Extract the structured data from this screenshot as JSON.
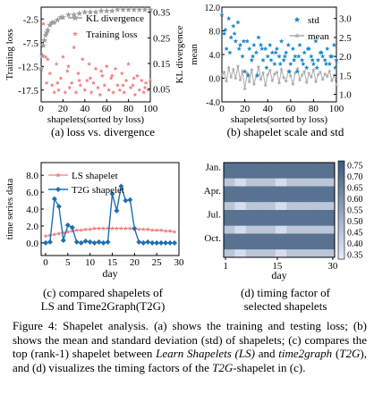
{
  "figure": {
    "label": "Figure 4:",
    "title": "Shapelet analysis.",
    "caption_parts": [
      {
        "t": "(a) shows the training and testing loss; (b) shows the mean and standard deviation (std) of shapelets; (c) compares the top (rank-1) shapelet between ",
        "i": false
      },
      {
        "t": "Learn Shapelets (LS)",
        "i": true
      },
      {
        "t": " and ",
        "i": false
      },
      {
        "t": "time2graph",
        "i": true
      },
      {
        "t": " (",
        "i": false
      },
      {
        "t": "T2G",
        "i": true
      },
      {
        "t": "), and (d) visualizes the timing factors of the ",
        "i": false
      },
      {
        "t": "T2G",
        "i": true
      },
      {
        "t": "-shapelet in (c).",
        "i": false
      }
    ]
  },
  "subcaptions": {
    "a": "(a) loss vs. divergence",
    "b": "(b) shapelet scale and std",
    "c1": "(c) compared shapelets of",
    "c2": "LS and Time2Graph(T2G)",
    "d1": "(d) timing factor of",
    "d2": "selected shapelets"
  },
  "chart_data": [
    {
      "id": "a",
      "type": "scatter",
      "xlabel": "shapelets(sorted by loss)",
      "ylabel": "Training loss",
      "y2label": "KL divergence",
      "xlim": [
        0,
        100
      ],
      "ylim": [
        -20,
        0
      ],
      "y2lim": [
        0,
        0.37
      ],
      "xticks": [
        "0",
        "20",
        "40",
        "60",
        "80",
        "100"
      ],
      "yticks": [
        "-2.5",
        "-7.5",
        "-12.5",
        "-17.5"
      ],
      "y2ticks": [
        "0.05",
        "0.15",
        "0.25",
        "0.35"
      ],
      "legend": [
        "KL divergence",
        "Training loss"
      ],
      "legend_position": "top",
      "series": [
        {
          "name": "KL divergence",
          "axis": "right",
          "color": "#9e9e9e",
          "x": [
            0,
            1,
            2,
            3,
            4,
            5,
            6,
            8,
            10,
            12,
            15,
            18,
            20,
            25,
            30,
            35,
            40,
            45,
            50,
            55,
            60,
            65,
            70,
            75,
            80,
            85,
            90,
            95,
            100
          ],
          "y": [
            0.13,
            0.18,
            0.22,
            0.24,
            0.26,
            0.27,
            0.28,
            0.3,
            0.31,
            0.31,
            0.32,
            0.33,
            0.33,
            0.34,
            0.34,
            0.345,
            0.35,
            0.35,
            0.35,
            0.355,
            0.355,
            0.355,
            0.36,
            0.36,
            0.36,
            0.36,
            0.36,
            0.36,
            0.36
          ]
        },
        {
          "name": "Training loss",
          "axis": "left",
          "color": "#f08080",
          "x": [
            2,
            4,
            6,
            8,
            10,
            12,
            14,
            16,
            18,
            20,
            22,
            24,
            26,
            28,
            30,
            32,
            34,
            36,
            38,
            40,
            42,
            44,
            46,
            48,
            50,
            52,
            54,
            56,
            58,
            60,
            62,
            64,
            66,
            68,
            70,
            72,
            74,
            76,
            78,
            80,
            82,
            84,
            86,
            88,
            90,
            92,
            94,
            96,
            98,
            100,
            5,
            15,
            25,
            35,
            45,
            55,
            65,
            75,
            85,
            95
          ],
          "y": [
            -3.5,
            -10.5,
            -11.0,
            -14.0,
            -16.5,
            -18.0,
            -12.0,
            -17.5,
            -15.0,
            -10.5,
            -18.0,
            -13.5,
            -17.0,
            -16.0,
            -8.5,
            -18.0,
            -14.0,
            -16.5,
            -11.0,
            -17.5,
            -15.5,
            -12.0,
            -18.0,
            -16.0,
            -13.0,
            -17.0,
            -18.5,
            -14.5,
            -16.5,
            -12.5,
            -17.5,
            -15.0,
            -18.0,
            -13.0,
            -16.5,
            -17.5,
            -14.0,
            -18.0,
            -15.5,
            -12.0,
            -17.0,
            -16.5,
            -18.5,
            -14.5,
            -17.5,
            -15.5,
            -18.0,
            -16.0,
            -17.5,
            -15.5,
            -16.0,
            -16.0,
            -12.5,
            -15.5,
            -15.0,
            -13.5,
            -14.5,
            -16.5,
            -15.0,
            -17.0
          ]
        }
      ]
    },
    {
      "id": "b",
      "type": "scatter",
      "xlabel": "shapelets(sorted by loss)",
      "ylabel": "mean",
      "y2label": "",
      "xlim": [
        0,
        100
      ],
      "ylim": [
        -4,
        12
      ],
      "y2lim": [
        0.8,
        3.3
      ],
      "xticks": [
        "0",
        "20",
        "40",
        "60",
        "80",
        "100"
      ],
      "yticks": [
        "-4.0",
        "0.0",
        "4.0",
        "8.0",
        "12.0"
      ],
      "y2ticks": [
        "1.0",
        "1.5",
        "2.0",
        "2.5",
        "3.0"
      ],
      "legend": [
        "std",
        "mean"
      ],
      "legend_position": "top-right",
      "series": [
        {
          "name": "std",
          "axis": "right",
          "color": "#1e88c8",
          "x": [
            0,
            2,
            4,
            6,
            8,
            10,
            12,
            14,
            16,
            18,
            20,
            22,
            24,
            26,
            28,
            30,
            32,
            34,
            36,
            38,
            40,
            42,
            44,
            46,
            48,
            50,
            52,
            54,
            56,
            58,
            60,
            62,
            64,
            66,
            68,
            70,
            72,
            74,
            76,
            78,
            80,
            82,
            84,
            86,
            88,
            90,
            92,
            94,
            96,
            98,
            100,
            3,
            7,
            11,
            15,
            19,
            23,
            27,
            31,
            35,
            39,
            43,
            47,
            51,
            55,
            59,
            63,
            67,
            71,
            75,
            79,
            83,
            87,
            91,
            95,
            99
          ],
          "y": [
            3.1,
            2.6,
            2.2,
            3.0,
            2.5,
            2.8,
            2.4,
            2.9,
            2.3,
            2.0,
            1.6,
            2.4,
            2.2,
            1.9,
            2.3,
            2.1,
            2.5,
            2.3,
            1.9,
            2.2,
            2.0,
            2.3,
            2.1,
            1.8,
            2.2,
            2.0,
            2.4,
            1.9,
            2.1,
            2.3,
            1.8,
            2.2,
            2.0,
            1.6,
            2.3,
            1.9,
            2.1,
            1.7,
            2.2,
            2.0,
            1.8,
            2.4,
            1.9,
            2.1,
            2.0,
            1.9,
            2.2,
            1.8,
            2.0,
            2.3,
            1.9,
            2.7,
            2.1,
            2.6,
            2.2,
            2.4,
            1.5,
            2.0,
            1.5,
            2.2,
            1.7,
            1.9,
            2.1,
            1.8,
            2.0,
            1.6,
            1.9,
            2.0,
            1.8,
            2.2,
            1.9,
            1.7,
            2.1,
            1.8,
            2.0,
            1.7
          ]
        },
        {
          "name": "mean",
          "axis": "left",
          "color": "#aaaaaa",
          "x": [
            0,
            2,
            4,
            6,
            8,
            10,
            12,
            14,
            16,
            18,
            20,
            22,
            24,
            26,
            28,
            30,
            32,
            34,
            36,
            38,
            40,
            42,
            44,
            46,
            48,
            50,
            52,
            54,
            56,
            58,
            60,
            62,
            64,
            66,
            68,
            70,
            72,
            74,
            76,
            78,
            80,
            82,
            84,
            86,
            88,
            90,
            92,
            94,
            96,
            98,
            100
          ],
          "y": [
            0.5,
            1.0,
            -0.5,
            1.8,
            0.2,
            1.5,
            0.0,
            2.0,
            -0.3,
            1.2,
            -1.8,
            0.8,
            -0.6,
            1.4,
            -1.0,
            0.3,
            1.9,
            -0.2,
            0.9,
            -1.2,
            0.6,
            1.3,
            -0.4,
            0.7,
            1.0,
            -0.8,
            1.5,
            0.1,
            -0.5,
            1.2,
            0.4,
            -1.0,
            0.9,
            1.6,
            -0.3,
            0.5,
            1.1,
            -0.7,
            0.8,
            0.2,
            1.4,
            -0.6,
            0.6,
            1.0,
            -0.2,
            0.7,
            0.3,
            1.2,
            -0.4,
            0.5,
            -1.2
          ]
        }
      ]
    },
    {
      "id": "c",
      "type": "line",
      "xlabel": "day",
      "ylabel": "time series data",
      "xlim": [
        -1,
        30
      ],
      "ylim": [
        -1.5,
        9.5
      ],
      "xticks": [
        "0",
        "5",
        "10",
        "15",
        "20",
        "25",
        "30"
      ],
      "yticks": [
        "0.0",
        "2.0",
        "4.0",
        "6.0",
        "8.0"
      ],
      "legend": [
        "LS shapelet",
        "T2G shapelet"
      ],
      "legend_position": "top-left",
      "series": [
        {
          "name": "LS shapelet",
          "color": "#f08080",
          "x": [
            0,
            1,
            2,
            3,
            4,
            5,
            6,
            7,
            8,
            9,
            10,
            11,
            12,
            13,
            14,
            15,
            16,
            17,
            18,
            19,
            20,
            21,
            22,
            23,
            24,
            25,
            26,
            27,
            28,
            29
          ],
          "y": [
            0.8,
            0.9,
            1.0,
            1.1,
            1.2,
            1.3,
            1.4,
            1.5,
            1.5,
            1.6,
            1.6,
            1.7,
            1.7,
            1.7,
            1.7,
            1.7,
            1.7,
            1.7,
            1.7,
            1.7,
            1.7,
            1.6,
            1.6,
            1.6,
            1.5,
            1.5,
            1.5,
            1.4,
            1.4,
            1.3
          ]
        },
        {
          "name": "T2G shapelet",
          "color": "#1e6fb0",
          "x": [
            0,
            1,
            2,
            3,
            4,
            5,
            6,
            7,
            8,
            9,
            10,
            11,
            12,
            13,
            14,
            15,
            16,
            17,
            18,
            19,
            20,
            21,
            22,
            23,
            24,
            25,
            26,
            27,
            28,
            29
          ],
          "y": [
            0.0,
            0.1,
            5.2,
            4.3,
            0.3,
            2.1,
            1.8,
            0.1,
            0.0,
            0.2,
            0.1,
            0.0,
            0.1,
            0.0,
            0.1,
            5.8,
            3.8,
            6.7,
            5.0,
            5.1,
            1.7,
            0.1,
            0.0,
            0.1,
            0.0,
            0.0,
            0.0,
            0.0,
            0.0,
            0.0
          ]
        }
      ]
    },
    {
      "id": "d",
      "type": "heatmap",
      "xlabel": "day",
      "ylabel": "",
      "xticks": [
        "1",
        "15",
        "30"
      ],
      "yticks": [
        "Jan.",
        "Apr.",
        "Jul.",
        "Oct."
      ],
      "colorbar_ticks": [
        "0.75",
        "0.70",
        "0.65",
        "0.60",
        "0.55",
        "0.50",
        "0.45",
        "0.40",
        "0.35"
      ],
      "colorbar_range": [
        0.33,
        0.77
      ],
      "columns": 30,
      "rows": [
        {
          "base": 0.7,
          "cols": []
        },
        {
          "base": 0.7,
          "cols": []
        },
        {
          "base": 0.45,
          "cols": [
            3,
            4,
            5,
            14,
            15,
            16
          ]
        },
        {
          "base": 0.7,
          "cols": []
        },
        {
          "base": 0.7,
          "cols": []
        },
        {
          "base": 0.45,
          "cols": [
            3,
            4,
            5,
            14,
            15,
            16
          ]
        },
        {
          "base": 0.7,
          "cols": []
        },
        {
          "base": 0.7,
          "cols": []
        },
        {
          "base": 0.45,
          "cols": [
            3,
            4,
            5,
            14,
            15,
            16
          ]
        },
        {
          "base": 0.7,
          "cols": []
        },
        {
          "base": 0.7,
          "cols": []
        },
        {
          "base": 0.45,
          "cols": [
            3,
            4,
            5,
            14,
            15,
            16
          ]
        }
      ],
      "alt": 0.38
    }
  ]
}
